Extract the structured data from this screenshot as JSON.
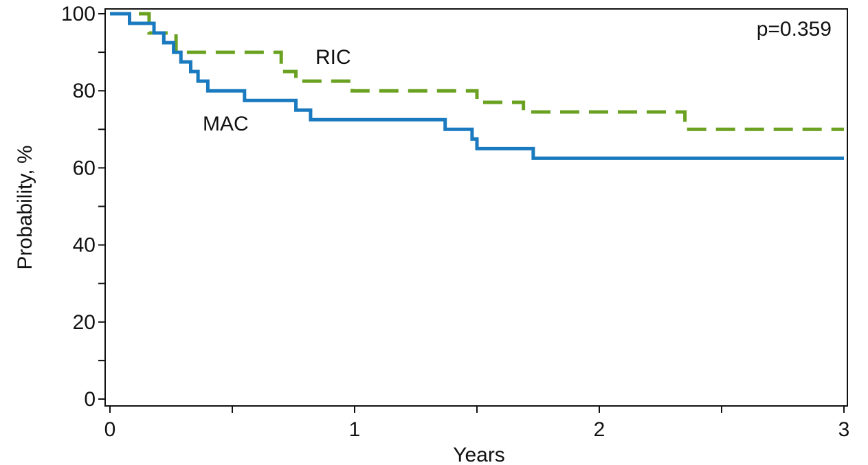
{
  "chart_data": {
    "type": "line",
    "step": true,
    "xlabel": "Years",
    "ylabel": "Probability, %",
    "xlim": [
      0,
      3
    ],
    "ylim": [
      0,
      100
    ],
    "x_ticks": [
      0,
      1,
      2,
      3
    ],
    "x_minor_ticks": [
      0.5,
      1.5,
      2.5
    ],
    "y_ticks": [
      0,
      20,
      40,
      60,
      80,
      100
    ],
    "y_minor_ticks": [
      10,
      30,
      50,
      70,
      90
    ],
    "grid": false,
    "annotation": "p=0.359",
    "series": [
      {
        "name": "RIC",
        "color": "#6aa121",
        "dash": "dashed",
        "x": [
          0,
          0.16,
          0.27,
          0.7,
          0.76,
          0.99,
          1.5,
          1.69,
          2.35,
          3.0
        ],
        "y": [
          100,
          95,
          90,
          85,
          82.5,
          80,
          77,
          74.5,
          70,
          70
        ]
      },
      {
        "name": "MAC",
        "color": "#1a7abf",
        "dash": "solid",
        "x": [
          0,
          0.08,
          0.18,
          0.22,
          0.26,
          0.29,
          0.33,
          0.36,
          0.4,
          0.55,
          0.76,
          0.82,
          1.37,
          1.48,
          1.5,
          1.73,
          3.0
        ],
        "y": [
          100,
          97.5,
          95,
          92.5,
          90,
          87.5,
          85,
          82.5,
          80,
          77.5,
          75,
          72.5,
          70,
          67.5,
          65,
          62.5,
          62.5
        ]
      }
    ]
  }
}
